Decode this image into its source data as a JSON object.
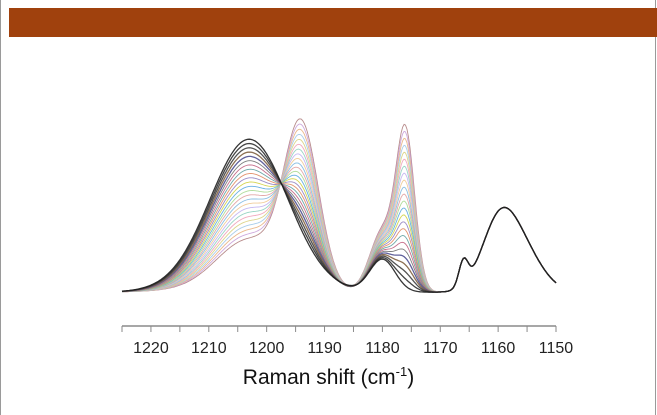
{
  "colors": {
    "header_band": "#a0410d",
    "axis": "#8a8a8a",
    "tick_label": "#222222"
  },
  "chart_data": {
    "type": "line",
    "title": "",
    "xlabel": {
      "main": "Raman shift (cm",
      "superscript": "-1",
      "close": ")"
    },
    "ylabel": "",
    "x_reversed": true,
    "xlim": [
      1150,
      1225
    ],
    "xticks": [
      "1220",
      "1210",
      "1200",
      "1190",
      "1180",
      "1170",
      "1160",
      "1150"
    ],
    "ylim": [
      0,
      1
    ],
    "y_axis_visible": false,
    "grid": false,
    "legend": "none",
    "series_description": "family of overlaid Raman spectra",
    "series_count": 24,
    "peaks": [
      {
        "position": 1203,
        "start_height": 0.19,
        "end_height": 0.59,
        "width": 5.5
      },
      {
        "position": 1194,
        "start_height": 0.63,
        "end_height": 0.0,
        "width": 3.0
      },
      {
        "position": 1180,
        "start_height": 0.24,
        "end_height": 0.13,
        "width": 2.2
      },
      {
        "position": 1176,
        "start_height": 0.62,
        "end_height": 0.0,
        "width": 1.6
      },
      {
        "position": 1166,
        "start_height": 0.1,
        "end_height": 0.1,
        "width": 0.8
      },
      {
        "position": 1160,
        "start_height": 0.24,
        "end_height": 0.24,
        "width": 3.0
      },
      {
        "position": 1156,
        "start_height": 0.16,
        "end_height": 0.16,
        "width": 3.5
      }
    ],
    "line_colors": [
      "#b08080",
      "#c9a0d8",
      "#e8b080",
      "#a0c8e8",
      "#d8d080",
      "#f0a0b8",
      "#90d0c0",
      "#c0b0f0",
      "#f0c890",
      "#80b8e0",
      "#e0a0a0",
      "#a8d890",
      "#5aa8e0",
      "#d0d040",
      "#9080c0",
      "#e08860",
      "#60a0a0",
      "#c06080",
      "#707070",
      "#505090",
      "#806040",
      "#404040",
      "#303030",
      "#202020"
    ]
  }
}
